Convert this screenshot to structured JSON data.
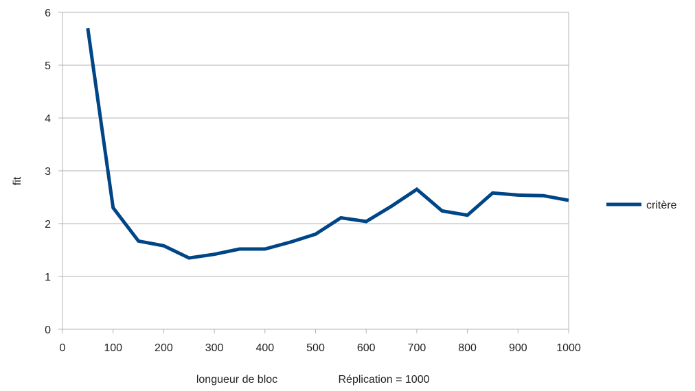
{
  "chart_data": {
    "type": "line",
    "xlabel": "longueur de bloc",
    "xlabel_note": "Réplication = 1000",
    "ylabel": "fit",
    "xlim": [
      0,
      1000
    ],
    "ylim": [
      0,
      6
    ],
    "xticks": [
      0,
      100,
      200,
      300,
      400,
      500,
      600,
      700,
      800,
      900,
      1000
    ],
    "yticks": [
      0,
      1,
      2,
      3,
      4,
      5,
      6
    ],
    "grid": "horizontal",
    "legend_position": "right",
    "series": [
      {
        "name": "critère",
        "color": "#004586",
        "x": [
          50,
          100,
          150,
          200,
          250,
          300,
          350,
          400,
          450,
          500,
          550,
          600,
          650,
          700,
          750,
          800,
          850,
          900,
          950,
          1000
        ],
        "y": [
          5.7,
          2.3,
          1.67,
          1.58,
          1.35,
          1.42,
          1.52,
          1.52,
          1.65,
          1.8,
          2.11,
          2.04,
          2.33,
          2.65,
          2.24,
          2.16,
          2.58,
          2.54,
          2.53,
          2.44
        ]
      }
    ]
  }
}
